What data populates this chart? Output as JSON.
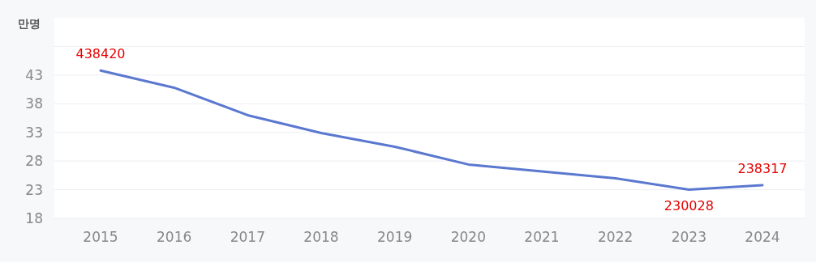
{
  "chart_data": {
    "type": "line",
    "ylabel": "만명",
    "categories": [
      "2015",
      "2016",
      "2017",
      "2018",
      "2019",
      "2020",
      "2021",
      "2022",
      "2023",
      "2024"
    ],
    "series": [
      {
        "color": "#5b78d0",
        "values": [
          43.8,
          40.8,
          36.0,
          32.9,
          30.5,
          27.4,
          26.2,
          25.0,
          23.0,
          23.8
        ]
      }
    ],
    "annotations": [
      {
        "text": "438420",
        "x": "2015",
        "y": 43.8
      },
      {
        "text": "230028",
        "x": "2023",
        "y": 23.0
      },
      {
        "text": "238317",
        "x": "2024",
        "y": 23.8
      }
    ],
    "ylim": [
      18,
      53
    ],
    "yticks": [
      18,
      23,
      28,
      33,
      38,
      43,
      {
        "value": 48,
        "label": null
      }
    ],
    "grid": "y",
    "marker": "none",
    "line_style": "solid"
  }
}
